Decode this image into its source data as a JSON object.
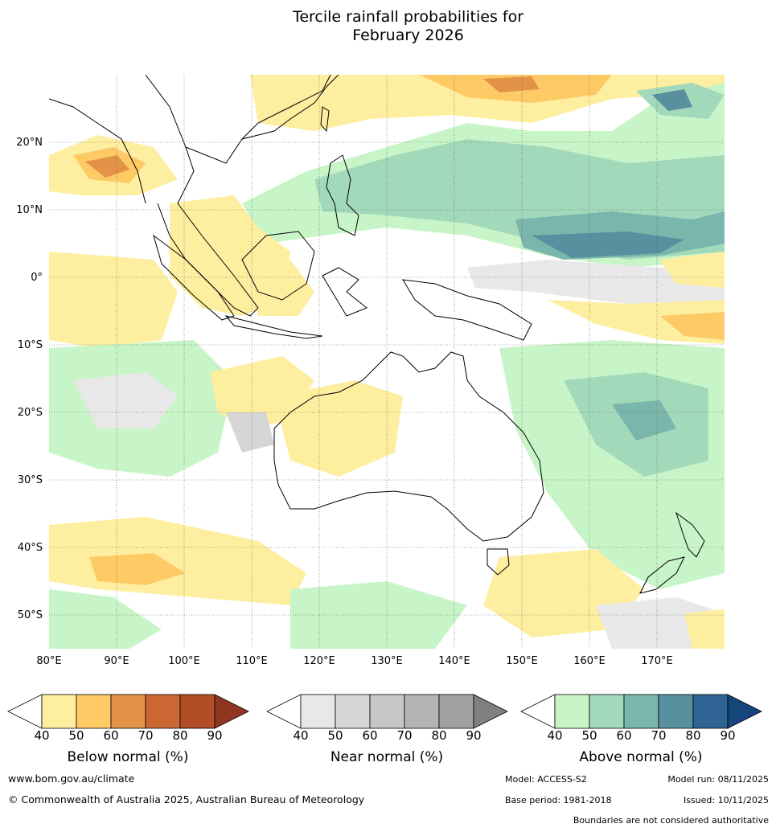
{
  "title": {
    "line1": "Tercile rainfall probabilities for",
    "line2": "February 2026"
  },
  "map": {
    "lat_labels": [
      "20°N",
      "10°N",
      "0°",
      "10°S",
      "20°S",
      "30°S",
      "40°S",
      "50°S"
    ],
    "lon_labels": [
      "80°E",
      "90°E",
      "100°E",
      "110°E",
      "120°E",
      "130°E",
      "140°E",
      "150°E",
      "160°E",
      "170°E"
    ]
  },
  "legends": [
    {
      "title": "Below normal (%)",
      "ticks": [
        "40",
        "50",
        "60",
        "70",
        "80",
        "90"
      ],
      "colors": [
        "#ffffff",
        "#feeea0",
        "#fdca66",
        "#e39347",
        "#cc6633",
        "#b14d27",
        "#8f3520"
      ]
    },
    {
      "title": "Near normal (%)",
      "ticks": [
        "40",
        "50",
        "60",
        "70",
        "80",
        "90"
      ],
      "colors": [
        "#ffffff",
        "#e8e8e8",
        "#d6d6d6",
        "#c6c6c6",
        "#b4b4b4",
        "#a0a0a0",
        "#808080"
      ]
    },
    {
      "title": "Above normal (%)",
      "ticks": [
        "40",
        "50",
        "60",
        "70",
        "80",
        "90"
      ],
      "colors": [
        "#ffffff",
        "#c8f5c8",
        "#a3d9bb",
        "#7ab6ab",
        "#5890a0",
        "#2e6394",
        "#15457b"
      ]
    }
  ],
  "footer": {
    "website": "www.bom.gov.au/climate",
    "copyright": "© Commonwealth of Australia 2025, Australian Bureau of Meteorology",
    "model": "Model: ACCESS-S2",
    "model_run": "Model run: 08/11/2025",
    "base_period": "Base period: 1981-2018",
    "issued": "Issued: 10/11/2025",
    "disclaimer": "Boundaries are not considered authoritative"
  }
}
